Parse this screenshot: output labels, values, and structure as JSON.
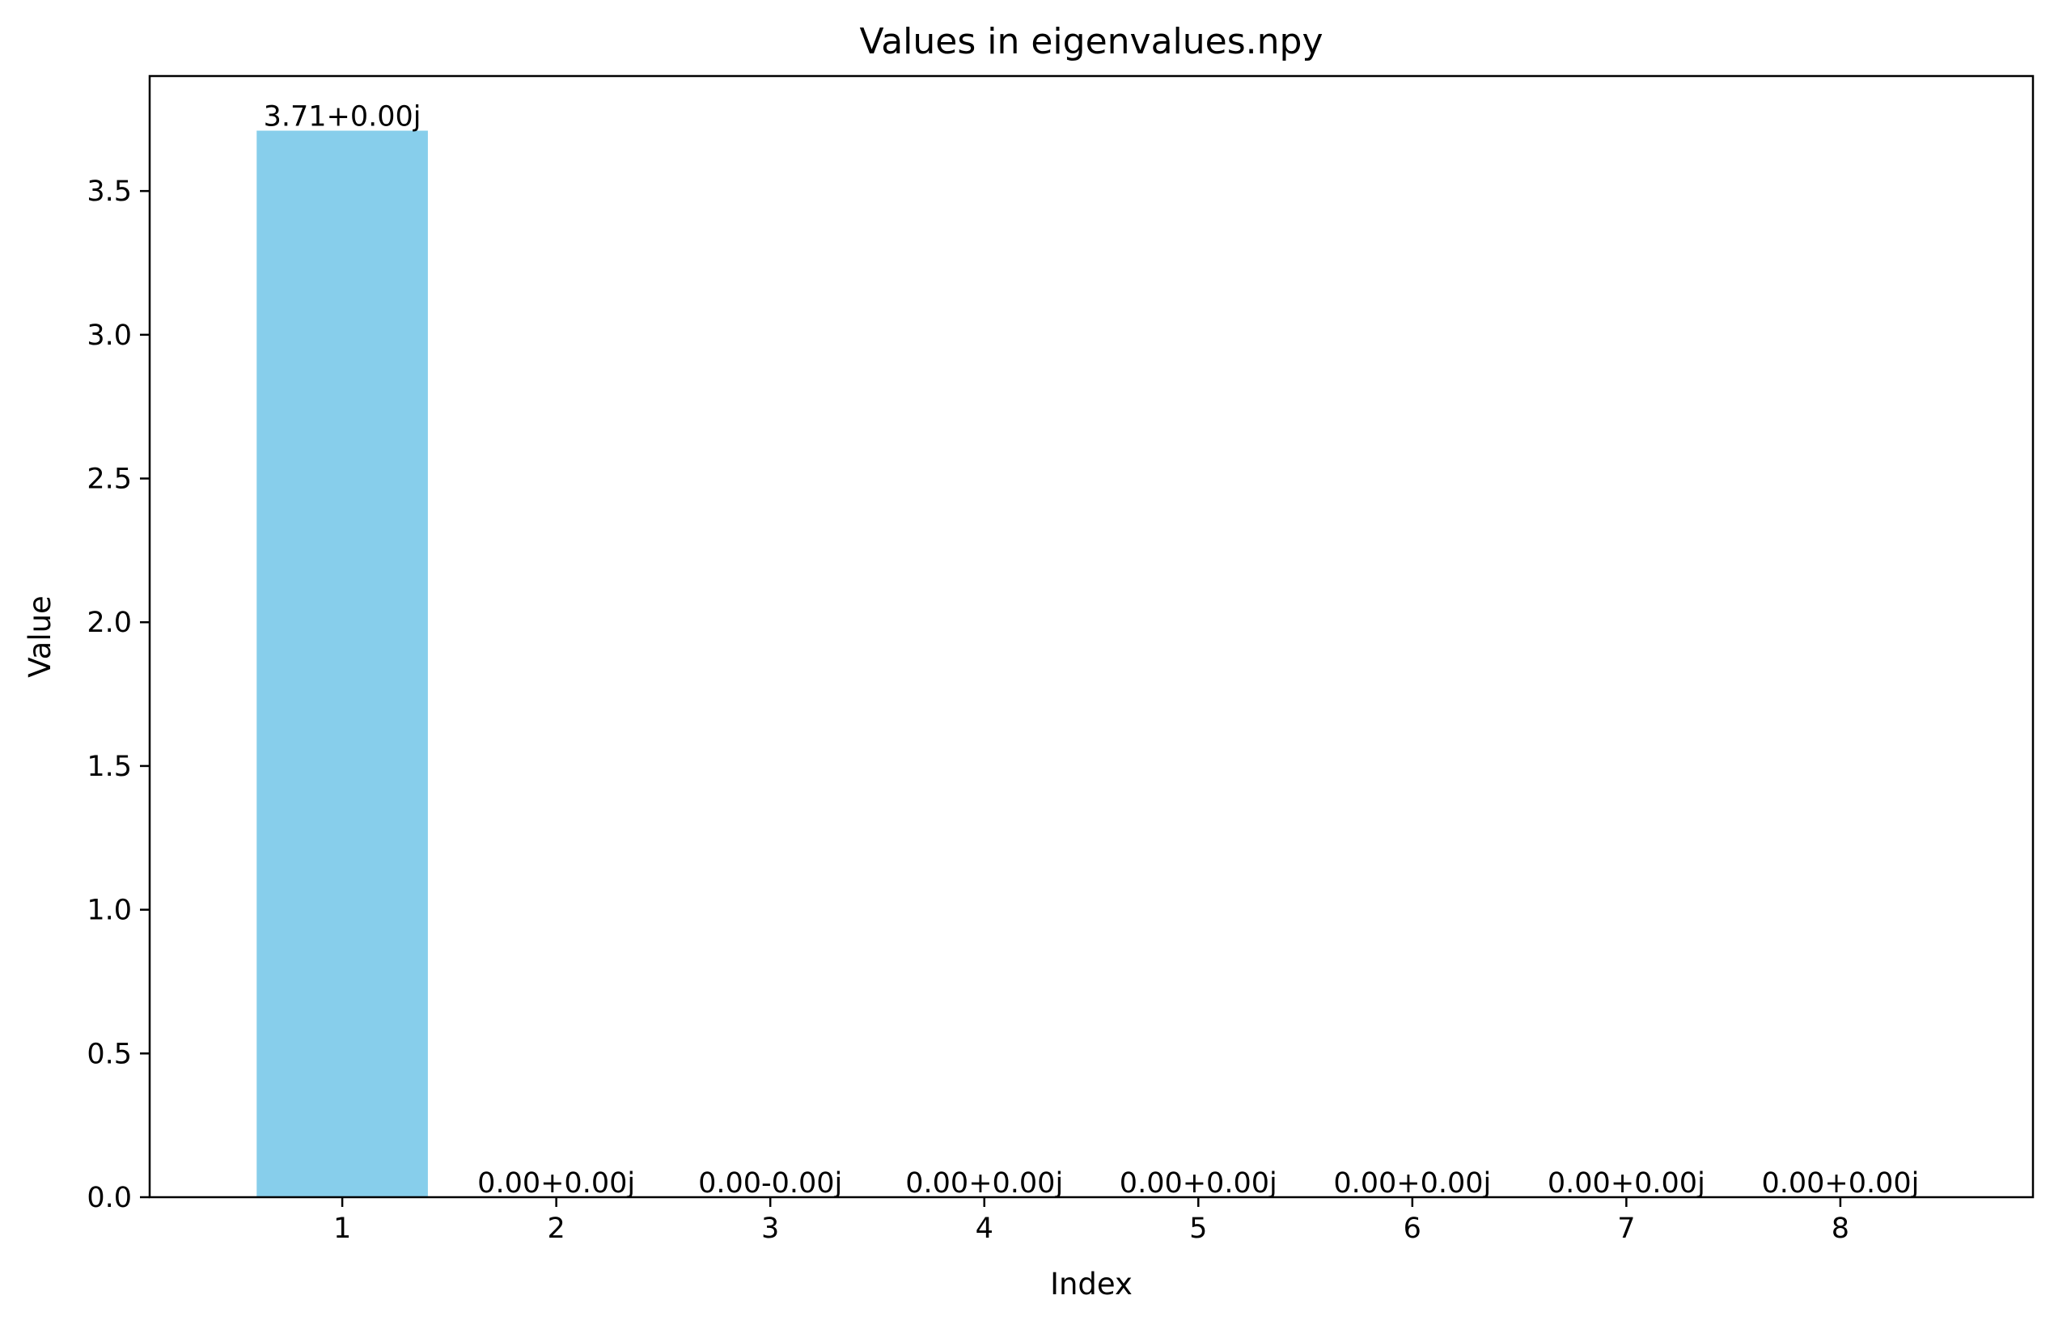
{
  "chart_data": {
    "type": "bar",
    "title": "Values in eigenvalues.npy",
    "xlabel": "Index",
    "ylabel": "Value",
    "categories": [
      "1",
      "2",
      "3",
      "4",
      "5",
      "6",
      "7",
      "8"
    ],
    "values": [
      3.71,
      0.0,
      0.0,
      0.0,
      0.0,
      0.0,
      0.0,
      0.0
    ],
    "data_labels": [
      "3.71+0.00j",
      "0.00+0.00j",
      "0.00-0.00j",
      "0.00+0.00j",
      "0.00+0.00j",
      "0.00+0.00j",
      "0.00+0.00j",
      "0.00+0.00j"
    ],
    "ylim": [
      0,
      3.9
    ],
    "yticks": [
      0.0,
      0.5,
      1.0,
      1.5,
      2.0,
      2.5,
      3.0,
      3.5
    ],
    "ytick_labels": [
      "0.0",
      "0.5",
      "1.0",
      "1.5",
      "2.0",
      "2.5",
      "3.0",
      "3.5"
    ],
    "grid": false,
    "bar_color": "#87CEEB"
  }
}
